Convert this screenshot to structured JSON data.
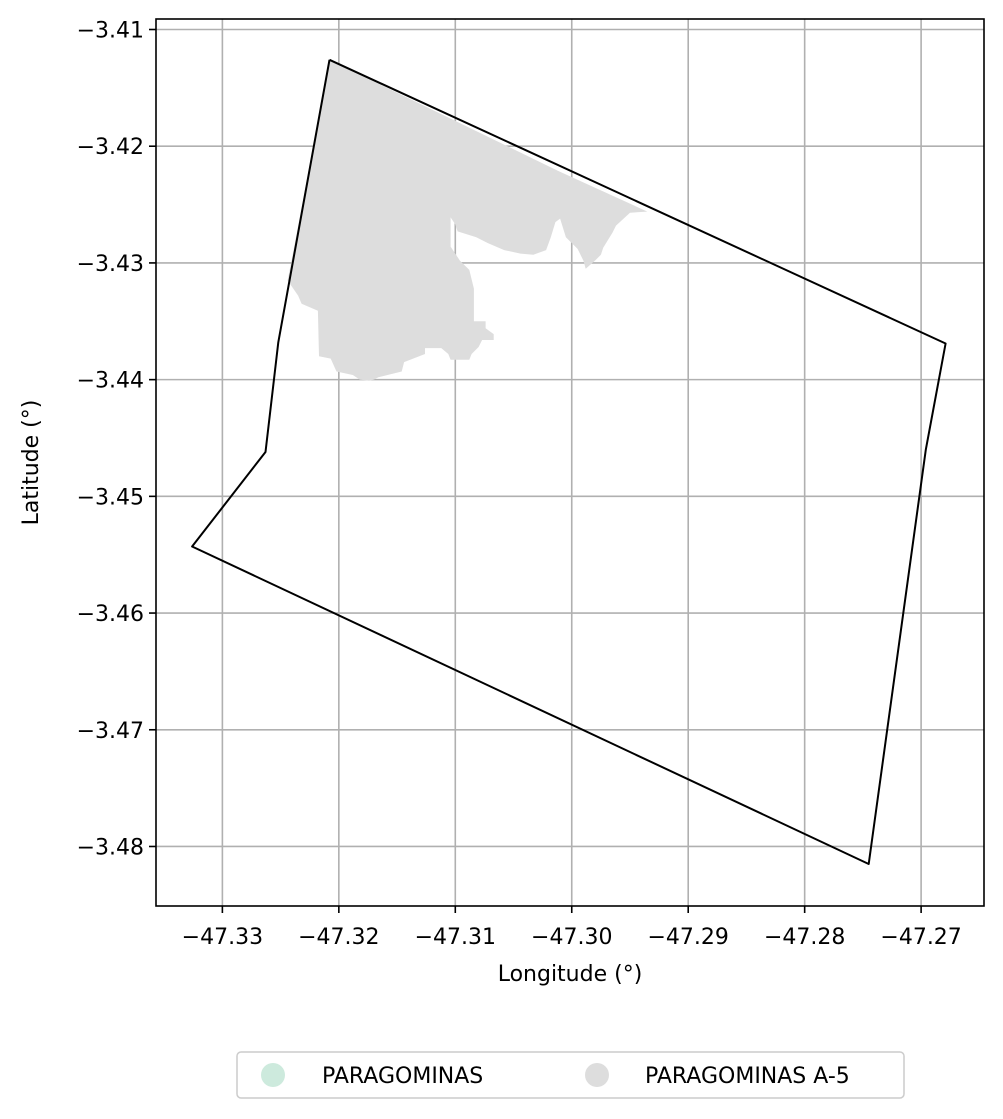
{
  "chart_data": {
    "type": "map",
    "title": "",
    "xlabel": "Longitude (°)",
    "ylabel": "Latitude (°)",
    "xlim": [
      -47.3357,
      -47.2646
    ],
    "ylim": [
      -3.4851,
      -3.4091
    ],
    "xticks": [
      -47.33,
      -47.32,
      -47.31,
      -47.3,
      -47.29,
      -47.28,
      -47.27
    ],
    "xtick_labels": [
      "−47.33",
      "−47.32",
      "−47.31",
      "−47.30",
      "−47.29",
      "−47.28",
      "−47.27"
    ],
    "yticks": [
      -3.41,
      -3.42,
      -3.43,
      -3.44,
      -3.45,
      -3.46,
      -3.47,
      -3.48
    ],
    "ytick_labels": [
      "−3.41",
      "−3.42",
      "−3.43",
      "−3.44",
      "−3.45",
      "−3.46",
      "−3.47",
      "−3.48"
    ],
    "grid": true,
    "legend_placement": "bottom-center",
    "legend": [
      {
        "label": "PARAGOMINAS",
        "color": "#cdeadd"
      },
      {
        "label": "PARAGOMINAS A-5",
        "color": "#dddddd"
      }
    ],
    "boundary": {
      "color": "#000000",
      "lon": [
        -47.3208,
        -47.2679,
        -47.2696,
        -47.2745,
        -47.3326,
        -47.3263,
        -47.3252,
        -47.3208
      ],
      "lat": [
        -3.4126,
        -3.4369,
        -3.446,
        -3.4815,
        -3.4543,
        -3.4462,
        -3.4368,
        -3.4126
      ]
    },
    "area_a5": {
      "color": "#dddddd",
      "lon": [
        -47.3208,
        -47.3012,
        -47.2935,
        -47.295,
        -47.2962,
        -47.2965,
        -47.2973,
        -47.2975,
        -47.298,
        -47.2988,
        -47.299,
        -47.2995,
        -47.3005,
        -47.301,
        -47.3014,
        -47.3018,
        -47.3022,
        -47.3033,
        -47.3044,
        -47.3058,
        -47.3072,
        -47.3082,
        -47.3098,
        -47.31,
        -47.3104,
        -47.3104,
        -47.3096,
        -47.3088,
        -47.3084,
        -47.3084,
        -47.3074,
        -47.3074,
        -47.3067,
        -47.3067,
        -47.3077,
        -47.308,
        -47.3086,
        -47.3088,
        -47.3104,
        -47.3106,
        -47.3112,
        -47.3126,
        -47.3126,
        -47.3144,
        -47.3146,
        -47.3166,
        -47.317,
        -47.3174,
        -47.3182,
        -47.3188,
        -47.3202,
        -47.3207,
        -47.3217,
        -47.3218,
        -47.3232,
        -47.3235,
        -47.3244,
        -47.3241,
        -47.3208
      ],
      "lat": [
        -3.4126,
        -3.4221,
        -3.4256,
        -3.4257,
        -3.4268,
        -3.4274,
        -3.4287,
        -3.4293,
        -3.4298,
        -3.4305,
        -3.4298,
        -3.4288,
        -3.4278,
        -3.4262,
        -3.4265,
        -3.4278,
        -3.4289,
        -3.4293,
        -3.4292,
        -3.4289,
        -3.4283,
        -3.4278,
        -3.4273,
        -3.4267,
        -3.4261,
        -3.4286,
        -3.4298,
        -3.4306,
        -3.4322,
        -3.435,
        -3.435,
        -3.4356,
        -3.4361,
        -3.4366,
        -3.4366,
        -3.4372,
        -3.4378,
        -3.4383,
        -3.4383,
        -3.4378,
        -3.4373,
        -3.4373,
        -3.4378,
        -3.4385,
        -3.4393,
        -3.4398,
        -3.44,
        -3.4401,
        -3.44,
        -3.4396,
        -3.4393,
        -3.4382,
        -3.438,
        -3.4341,
        -3.4335,
        -3.4328,
        -3.4315,
        -3.43,
        -3.4126
      ]
    }
  }
}
